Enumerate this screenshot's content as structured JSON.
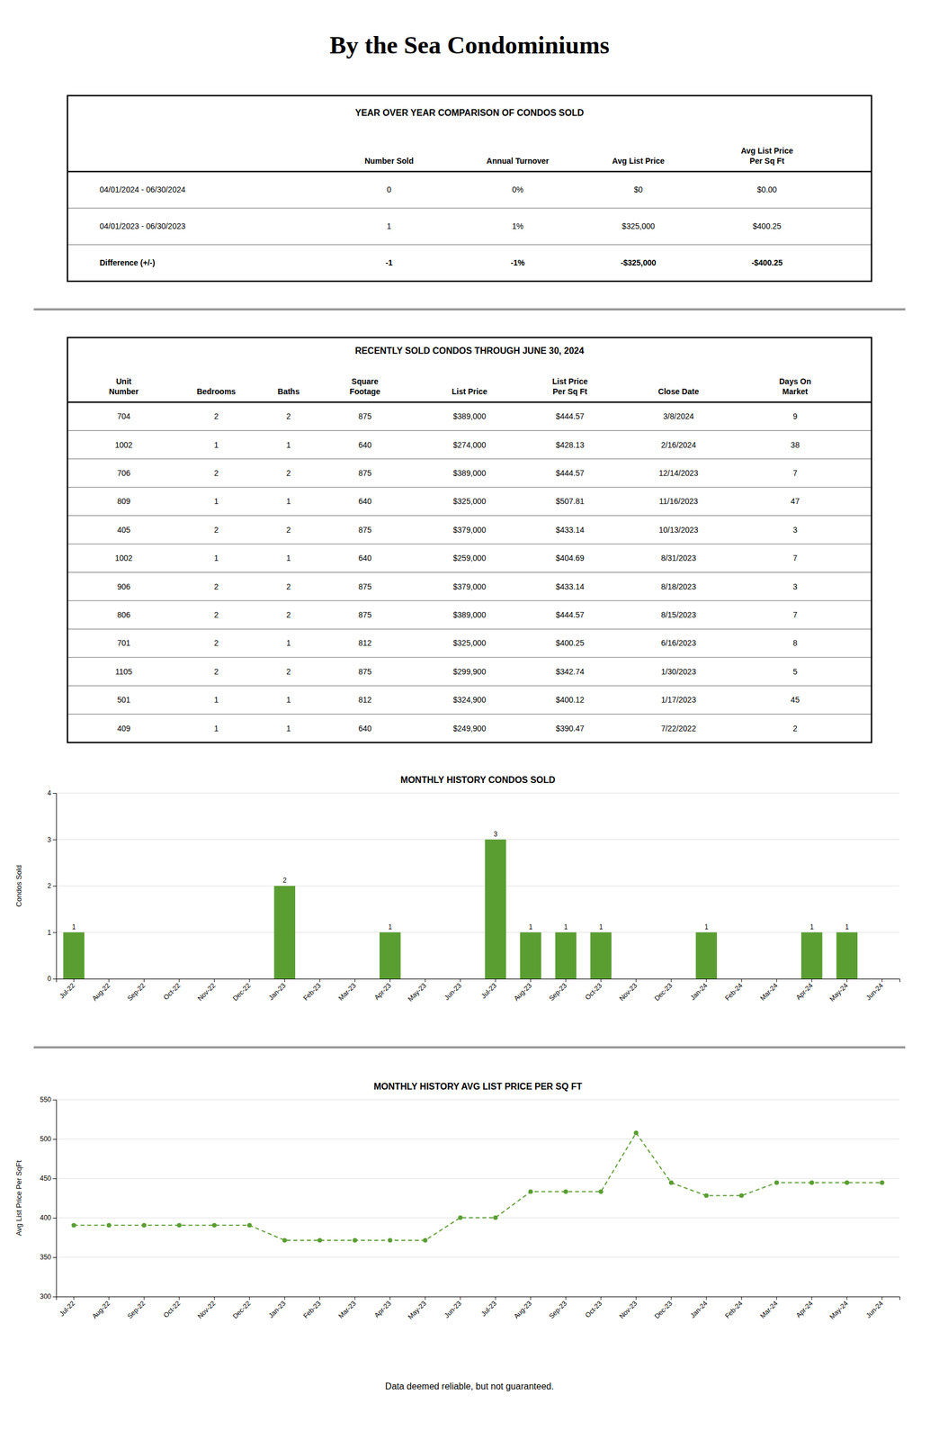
{
  "title": "By the Sea Condominiums",
  "tables": [
    {
      "title": "YEAR OVER YEAR COMPARISON OF CONDOS SOLD",
      "headers": [
        [
          "Number Sold"
        ],
        [
          "Annual Turnover"
        ],
        [
          "Avg List Price"
        ],
        [
          "Avg List Price",
          "Per Sq Ft"
        ]
      ],
      "row_labels": [
        "04/01/2024 - 06/30/2024",
        "04/01/2023 - 06/30/2023",
        "Difference (+/-)"
      ],
      "rows": [
        [
          "0",
          "0%",
          "$0",
          "$0.00"
        ],
        [
          "1",
          "1%",
          "$325,000",
          "$400.25"
        ],
        [
          "-1",
          "-1%",
          "-$325,000",
          "-$400.25"
        ]
      ]
    },
    {
      "title": "RECENTLY SOLD CONDOS THROUGH JUNE 30, 2024",
      "headers": [
        [
          "Unit",
          "Number"
        ],
        [
          "Bedrooms"
        ],
        [
          "Baths"
        ],
        [
          "Square",
          "Footage"
        ],
        [
          "List Price"
        ],
        [
          "List Price",
          "Per Sq Ft"
        ],
        [
          "Close Date"
        ],
        [
          "Days On",
          "Market"
        ]
      ],
      "rows": [
        [
          "704",
          "2",
          "2",
          "875",
          "$389,000",
          "$444.57",
          "3/8/2024",
          "9"
        ],
        [
          "1002",
          "1",
          "1",
          "640",
          "$274,000",
          "$428.13",
          "2/16/2024",
          "38"
        ],
        [
          "706",
          "2",
          "2",
          "875",
          "$389,000",
          "$444.57",
          "12/14/2023",
          "7"
        ],
        [
          "809",
          "1",
          "1",
          "640",
          "$325,000",
          "$507.81",
          "11/16/2023",
          "47"
        ],
        [
          "405",
          "2",
          "2",
          "875",
          "$379,000",
          "$433.14",
          "10/13/2023",
          "3"
        ],
        [
          "1002",
          "1",
          "1",
          "640",
          "$259,000",
          "$404.69",
          "8/31/2023",
          "7"
        ],
        [
          "906",
          "2",
          "2",
          "875",
          "$379,000",
          "$433.14",
          "8/18/2023",
          "3"
        ],
        [
          "806",
          "2",
          "2",
          "875",
          "$389,000",
          "$444.57",
          "8/15/2023",
          "7"
        ],
        [
          "701",
          "2",
          "1",
          "812",
          "$325,000",
          "$400.25",
          "6/16/2023",
          "8"
        ],
        [
          "1105",
          "2",
          "2",
          "875",
          "$299,900",
          "$342.74",
          "1/30/2023",
          "5"
        ],
        [
          "501",
          "1",
          "1",
          "812",
          "$324,900",
          "$400.12",
          "1/17/2023",
          "45"
        ],
        [
          "409",
          "1",
          "1",
          "640",
          "$249,900",
          "$390.47",
          "7/22/2022",
          "2"
        ]
      ]
    }
  ],
  "chart_data": [
    {
      "type": "bar",
      "title": "MONTHLY HISTORY CONDOS SOLD",
      "ylabel": "Condos Sold",
      "categories": [
        "Jul-22",
        "Aug-22",
        "Sep-22",
        "Oct-22",
        "Nov-22",
        "Dec-22",
        "Jan-23",
        "Feb-23",
        "Mar-23",
        "Apr-23",
        "May-23",
        "Jun-23",
        "Jul-23",
        "Aug-23",
        "Sep-23",
        "Oct-23",
        "Nov-23",
        "Dec-23",
        "Jan-24",
        "Feb-24",
        "Mar-24",
        "Apr-24",
        "May-24",
        "Jun-24"
      ],
      "values": [
        1,
        0,
        0,
        0,
        0,
        0,
        2,
        0,
        0,
        1,
        0,
        0,
        3,
        1,
        1,
        1,
        0,
        0,
        1,
        0,
        0,
        1,
        1,
        0
      ],
      "value_labels": [
        "1",
        null,
        null,
        null,
        null,
        null,
        "2",
        null,
        null,
        "1",
        null,
        null,
        "3",
        "1",
        "1",
        "1",
        null,
        null,
        "1",
        null,
        null,
        "1",
        "1",
        null
      ],
      "data_labels": true,
      "color": "#5a9e32",
      "ylim": [
        0,
        4
      ],
      "yticks": [
        0,
        1,
        2,
        3,
        4
      ],
      "grid": true
    },
    {
      "type": "line",
      "title": "MONTHLY HISTORY AVG LIST PRICE PER SQ FT",
      "ylabel": "Avg List Price Per SqFt",
      "categories": [
        "Jul-22",
        "Aug-22",
        "Sep-22",
        "Oct-22",
        "Nov-22",
        "Dec-22",
        "Jan-23",
        "Feb-23",
        "Mar-23",
        "Apr-23",
        "May-23",
        "Jun-23",
        "Jul-23",
        "Aug-23",
        "Sep-23",
        "Oct-23",
        "Nov-23",
        "Dec-23",
        "Jan-24",
        "Feb-24",
        "Mar-24",
        "Apr-24",
        "May-24",
        "Jun-24"
      ],
      "values": [
        390.47,
        390.47,
        390.47,
        390.47,
        390.47,
        390.47,
        371.43,
        371.43,
        371.43,
        371.43,
        371.43,
        400.25,
        400.25,
        433.14,
        433.14,
        433.14,
        507.81,
        444.57,
        428.13,
        428.13,
        444.57,
        444.57,
        444.57,
        444.57
      ],
      "color": "#5a9e32",
      "marker": "circle",
      "line_style": "dashed",
      "ylim": [
        300,
        550
      ],
      "yticks": [
        300,
        350,
        400,
        450,
        500,
        550
      ],
      "grid": true
    }
  ],
  "footer": "Data deemed reliable, but not guaranteed."
}
